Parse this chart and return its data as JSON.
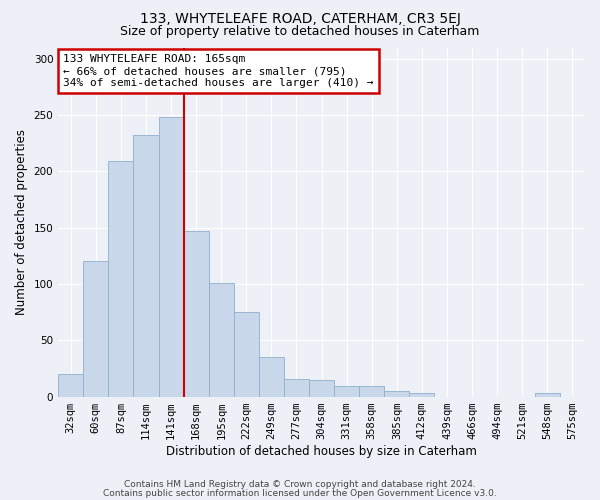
{
  "title": "133, WHYTELEAFE ROAD, CATERHAM, CR3 5EJ",
  "subtitle": "Size of property relative to detached houses in Caterham",
  "xlabel": "Distribution of detached houses by size in Caterham",
  "ylabel": "Number of detached properties",
  "categories": [
    "32sqm",
    "60sqm",
    "87sqm",
    "114sqm",
    "141sqm",
    "168sqm",
    "195sqm",
    "222sqm",
    "249sqm",
    "277sqm",
    "304sqm",
    "331sqm",
    "358sqm",
    "385sqm",
    "412sqm",
    "439sqm",
    "466sqm",
    "494sqm",
    "521sqm",
    "548sqm",
    "575sqm"
  ],
  "values": [
    20,
    120,
    209,
    232,
    248,
    147,
    101,
    75,
    35,
    16,
    15,
    9,
    9,
    5,
    3,
    0,
    0,
    0,
    0,
    3,
    0
  ],
  "bar_color": "#c8d8ea",
  "bar_edgecolor": "#90b0cc",
  "vline_idx": 5,
  "vline_color": "#cc0000",
  "annotation_text": "133 WHYTELEAFE ROAD: 165sqm\n← 66% of detached houses are smaller (795)\n34% of semi-detached houses are larger (410) →",
  "annotation_box_color": "white",
  "annotation_box_edgecolor": "#cc0000",
  "ylim": [
    0,
    310
  ],
  "yticks": [
    0,
    50,
    100,
    150,
    200,
    250,
    300
  ],
  "footer_line1": "Contains HM Land Registry data © Crown copyright and database right 2024.",
  "footer_line2": "Contains public sector information licensed under the Open Government Licence v3.0.",
  "bg_color": "#edf1f7",
  "title_fontsize": 10,
  "subtitle_fontsize": 9,
  "axis_label_fontsize": 8.5,
  "tick_fontsize": 7.5,
  "footer_fontsize": 6.5
}
